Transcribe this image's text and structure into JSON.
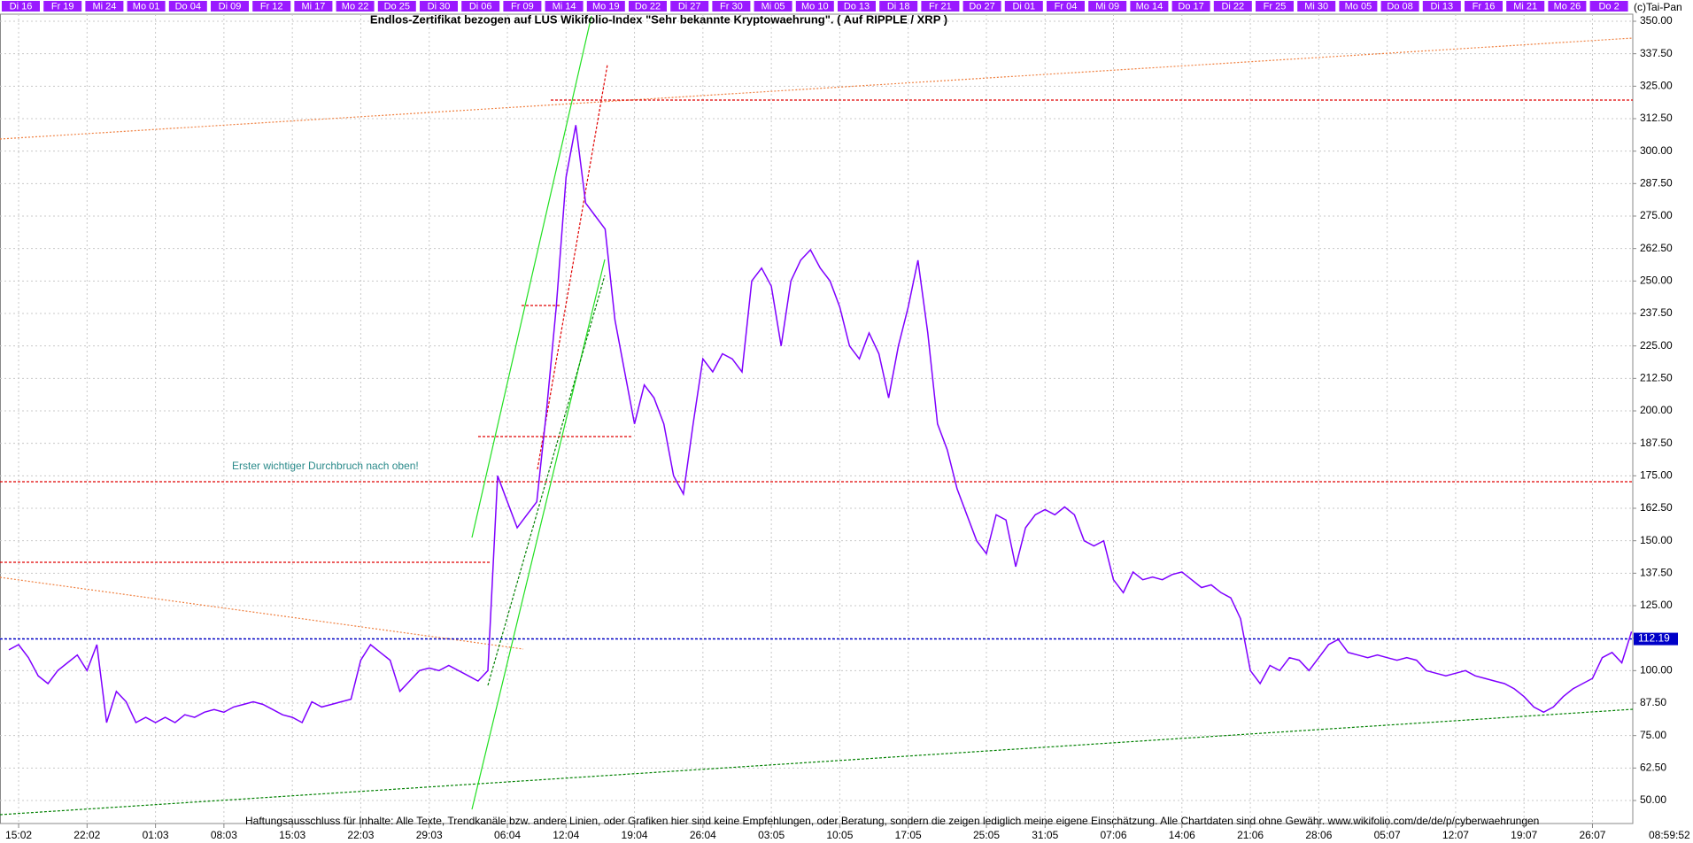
{
  "chart_data": {
    "type": "line",
    "title": "Endlos-Zertifikat bezogen auf LUS Wikifolio-Index \"Sehr bekannte Kryptowaehrung\". ( Auf RIPPLE / XRP )",
    "copyright": "(c)Tai-Pan",
    "time": "08:59:52",
    "annotation": "Erster wichtiger Durchbruch nach oben!",
    "footer": "Haftungsausschluss für Inhalte: Alle Texte, Trendkanäle bzw. andere Linien, oder Grafiken hier sind keine Empfehlungen, oder Beratung, sondern die zeigen lediglich meine eigene Einschätzung. Alle Chartdaten sind ohne Gewähr.  www.wikifolio.com/de/de/p/cyberwaehrungen",
    "top_labels": [
      "Di 16",
      "Fr 19",
      "Mi 24",
      "Mo 01",
      "Do 04",
      "Di 09",
      "Fr 12",
      "Mi 17",
      "Mo 22",
      "Do 25",
      "Di 30",
      "Di 06",
      "Fr 09",
      "Mi 14",
      "Mo 19",
      "Do 22",
      "Di 27",
      "Fr 30",
      "Mi 05",
      "Mo 10",
      "Do 13",
      "Di 18",
      "Fr 21",
      "Do 27",
      "Di 01",
      "Fr 04",
      "Mi 09",
      "Mo 14",
      "Do 17",
      "Di 22",
      "Fr 25",
      "Mi 30",
      "Mo 05",
      "Do 08",
      "Di 13",
      "Fr 16",
      "Mi 21",
      "Mo 26",
      "Do 2"
    ],
    "categories": [
      null,
      "15:02",
      null,
      null,
      null,
      null,
      null,
      null,
      "22:02",
      null,
      null,
      null,
      null,
      null,
      null,
      "01:03",
      null,
      null,
      null,
      null,
      null,
      null,
      "08:03",
      null,
      null,
      null,
      null,
      null,
      null,
      "15:03",
      null,
      null,
      null,
      null,
      null,
      null,
      "22:03",
      null,
      null,
      null,
      null,
      null,
      null,
      "29:03",
      null,
      null,
      null,
      null,
      null,
      null,
      null,
      "06:04",
      null,
      null,
      null,
      null,
      null,
      "12:04",
      null,
      null,
      null,
      null,
      null,
      null,
      "19:04",
      null,
      null,
      null,
      null,
      null,
      null,
      "26:04",
      null,
      null,
      null,
      null,
      null,
      null,
      "03:05",
      null,
      null,
      null,
      null,
      null,
      null,
      "10:05",
      null,
      null,
      null,
      null,
      null,
      null,
      "17:05",
      null,
      null,
      null,
      null,
      null,
      null,
      null,
      "25:05",
      null,
      null,
      null,
      null,
      null,
      "31:05",
      null,
      null,
      null,
      null,
      null,
      null,
      "07:06",
      null,
      null,
      null,
      null,
      null,
      null,
      "14:06",
      null,
      null,
      null,
      null,
      null,
      null,
      "21:06",
      null,
      null,
      null,
      null,
      null,
      null,
      "28:06",
      null,
      null,
      null,
      null,
      null,
      null,
      "05:07",
      null,
      null,
      null,
      null,
      null,
      null,
      "12:07",
      null,
      null,
      null,
      null,
      null,
      null,
      "19:07",
      null,
      null,
      null,
      null,
      null,
      null,
      "26:07",
      null,
      null,
      null,
      null
    ],
    "values": [
      108,
      110,
      105,
      98,
      95,
      100,
      103,
      106,
      100,
      110,
      80,
      92,
      88,
      80,
      82,
      80,
      82,
      80,
      83,
      82,
      84,
      85,
      84,
      86,
      87,
      88,
      87,
      85,
      83,
      82,
      80,
      88,
      86,
      87,
      88,
      89,
      104,
      110,
      107,
      104,
      92,
      96,
      100,
      101,
      100,
      102,
      100,
      98,
      96,
      100,
      175,
      165,
      155,
      160,
      165,
      200,
      240,
      290,
      310,
      280,
      275,
      270,
      235,
      215,
      195,
      210,
      205,
      195,
      175,
      168,
      195,
      220,
      215,
      222,
      220,
      215,
      250,
      255,
      248,
      225,
      250,
      258,
      262,
      255,
      250,
      240,
      225,
      220,
      230,
      222,
      205,
      225,
      240,
      258,
      230,
      195,
      185,
      170,
      160,
      150,
      145,
      160,
      158,
      140,
      155,
      160,
      162,
      160,
      163,
      160,
      150,
      148,
      150,
      135,
      130,
      138,
      135,
      136,
      135,
      137,
      138,
      135,
      132,
      133,
      130,
      128,
      120,
      100,
      95,
      102,
      100,
      105,
      104,
      100,
      105,
      110,
      112,
      107,
      106,
      105,
      106,
      105,
      104,
      105,
      104,
      100,
      99,
      98,
      99,
      100,
      98,
      97,
      96,
      95,
      93,
      90,
      86,
      84,
      86,
      90,
      93,
      95,
      97,
      105,
      107,
      103,
      115
    ],
    "color": "#7f00ff",
    "last_value": 112.19,
    "ylim": [
      50,
      350
    ],
    "yticks": [
      {
        "value": 50,
        "label": "50.00"
      },
      {
        "value": 62.5,
        "label": "62.50"
      },
      {
        "value": 75,
        "label": "75.00"
      },
      {
        "value": 87.5,
        "label": "87.50"
      },
      {
        "value": 100,
        "label": "100.00"
      },
      {
        "value": 112.5,
        "label": "112.50"
      },
      {
        "value": 125,
        "label": "125.00"
      },
      {
        "value": 137.5,
        "label": "137.50"
      },
      {
        "value": 150,
        "label": "150.00"
      },
      {
        "value": 162.5,
        "label": "162.50"
      },
      {
        "value": 175,
        "label": "175.00"
      },
      {
        "value": 187.5,
        "label": "187.50"
      },
      {
        "value": 200,
        "label": "200.00"
      },
      {
        "value": 212.5,
        "label": "212.50"
      },
      {
        "value": 225,
        "label": "225.00"
      },
      {
        "value": 237.5,
        "label": "237.50"
      },
      {
        "value": 250,
        "label": "250.00"
      },
      {
        "value": 262.5,
        "label": "262.50"
      },
      {
        "value": 275,
        "label": "275.00"
      },
      {
        "value": 287.5,
        "label": "287.50"
      },
      {
        "value": 300,
        "label": "300.00"
      },
      {
        "value": 312.5,
        "label": "312.50"
      },
      {
        "value": 325,
        "label": "325.00"
      },
      {
        "value": 337.5,
        "label": "337.50"
      },
      {
        "value": 350,
        "label": "350.00"
      }
    ],
    "grid": true
  }
}
